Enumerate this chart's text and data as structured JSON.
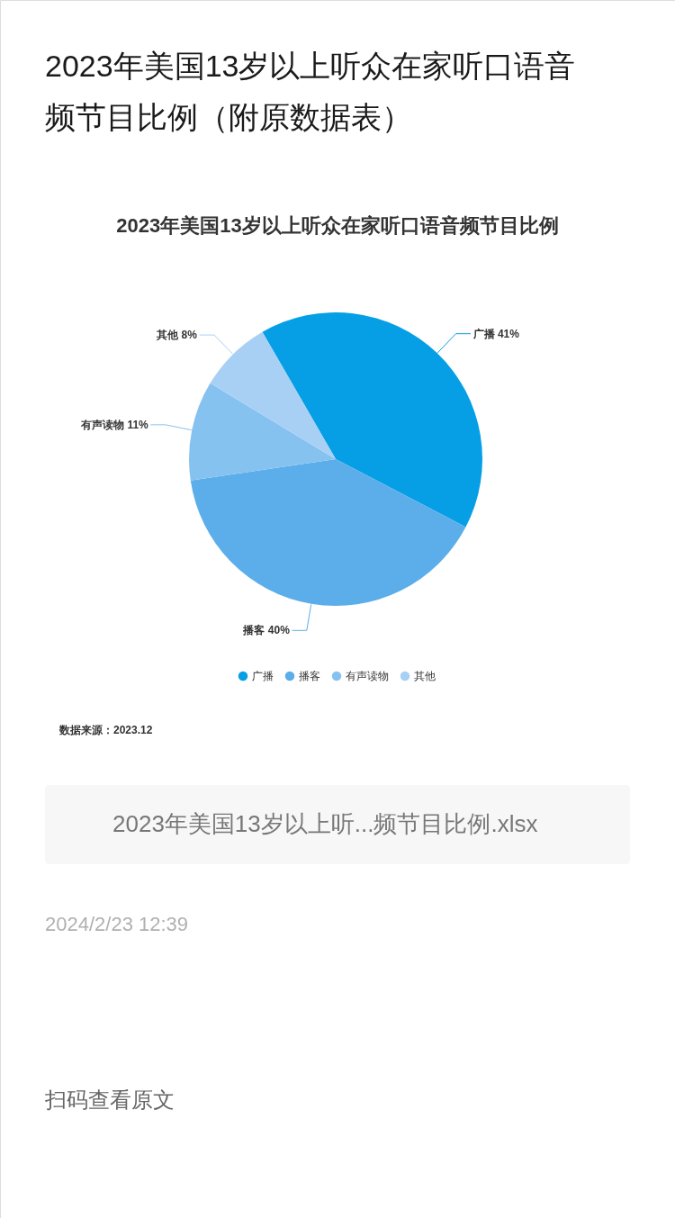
{
  "chart_data": {
    "type": "pie",
    "title": "2023年美国13岁以上听众在家听口语音频节目比例",
    "categories": [
      "广播",
      "播客",
      "有声读物",
      "其他"
    ],
    "values": [
      41,
      40,
      11,
      8
    ],
    "colors": [
      "#069fe6",
      "#5baeea",
      "#86c2f0",
      "#a8d0f4"
    ],
    "value_labels": [
      "41%",
      "40%",
      "11%",
      "8%"
    ],
    "legend": "bottom",
    "annotations": [
      "2023年美国13岁以上听众在家听口语音频节目比例（附原数据表）",
      "数据来源：2023.12",
      "2023年美国13岁以上听...频节目比例.xlsx",
      "2024/2/23 12:39",
      "扫码查看原文"
    ]
  }
}
